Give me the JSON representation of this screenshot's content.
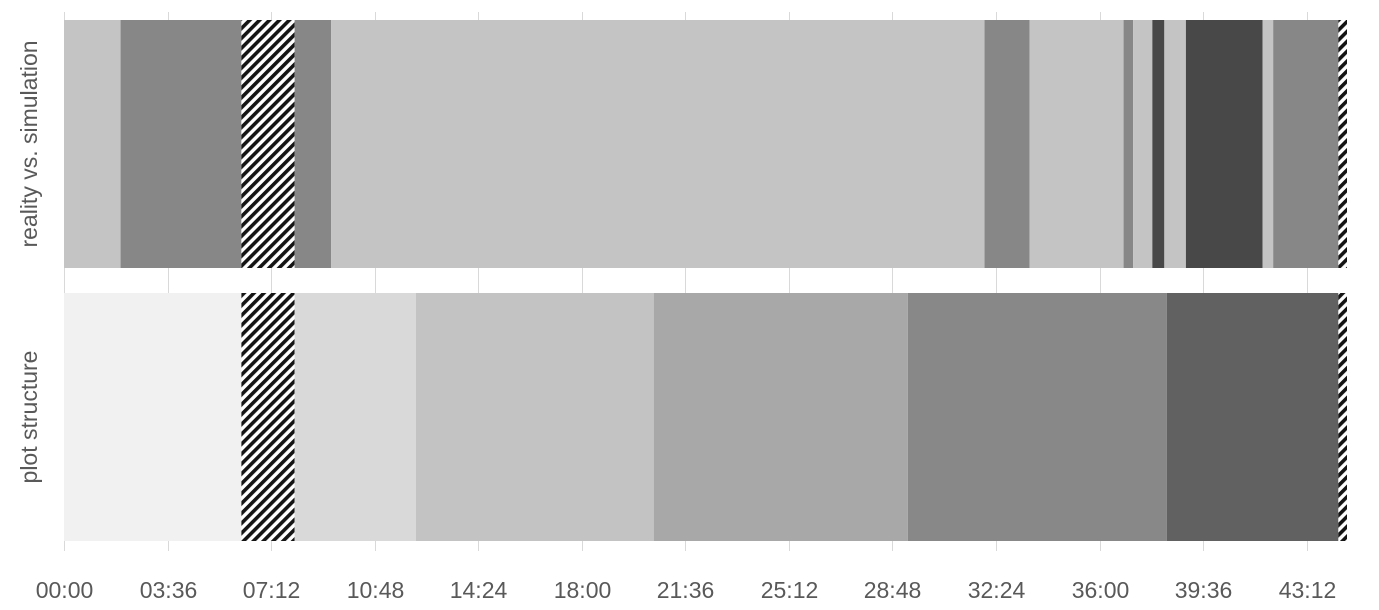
{
  "chart_data": {
    "type": "timeline",
    "x_unit": "mm:ss",
    "xlim": [
      "00:00",
      "44:36"
    ],
    "x_ticks": [
      "00:00",
      "03:36",
      "07:12",
      "10:48",
      "14:24",
      "18:00",
      "21:36",
      "25:12",
      "28:48",
      "32:24",
      "36:00",
      "39:36",
      "43:12"
    ],
    "grid": "vertical",
    "legend": "none",
    "rows": [
      {
        "label": "reality vs. simulation",
        "segments": [
          {
            "start": "00:00",
            "end": "01:58",
            "fill": "#c4c4c4"
          },
          {
            "start": "01:58",
            "end": "06:10",
            "fill": "#878787"
          },
          {
            "start": "06:10",
            "end": "08:01",
            "fill": "hatch"
          },
          {
            "start": "08:01",
            "end": "09:17",
            "fill": "#878787"
          },
          {
            "start": "09:17",
            "end": "32:00",
            "fill": "#c4c4c4"
          },
          {
            "start": "32:00",
            "end": "33:34",
            "fill": "#878787"
          },
          {
            "start": "33:34",
            "end": "36:50",
            "fill": "#c4c4c4"
          },
          {
            "start": "36:50",
            "end": "37:10",
            "fill": "#878787"
          },
          {
            "start": "37:10",
            "end": "37:50",
            "fill": "#c4c4c4"
          },
          {
            "start": "37:50",
            "end": "38:15",
            "fill": "#484848"
          },
          {
            "start": "38:15",
            "end": "39:00",
            "fill": "#c4c4c4"
          },
          {
            "start": "39:00",
            "end": "41:40",
            "fill": "#484848"
          },
          {
            "start": "41:40",
            "end": "42:02",
            "fill": "#c4c4c4"
          },
          {
            "start": "42:02",
            "end": "44:18",
            "fill": "#878787"
          },
          {
            "start": "44:18",
            "end": "44:36",
            "fill": "hatch"
          }
        ]
      },
      {
        "label": "plot structure",
        "segments": [
          {
            "start": "00:00",
            "end": "06:10",
            "fill": "#f1f1f1"
          },
          {
            "start": "06:10",
            "end": "08:01",
            "fill": "hatch"
          },
          {
            "start": "08:01",
            "end": "12:14",
            "fill": "#d9d9d9"
          },
          {
            "start": "12:14",
            "end": "20:30",
            "fill": "#c3c3c3"
          },
          {
            "start": "20:30",
            "end": "29:20",
            "fill": "#a8a8a8"
          },
          {
            "start": "29:20",
            "end": "38:20",
            "fill": "#888888"
          },
          {
            "start": "38:20",
            "end": "44:18",
            "fill": "#616161"
          },
          {
            "start": "44:18",
            "end": "44:36",
            "fill": "hatch"
          }
        ]
      }
    ]
  }
}
